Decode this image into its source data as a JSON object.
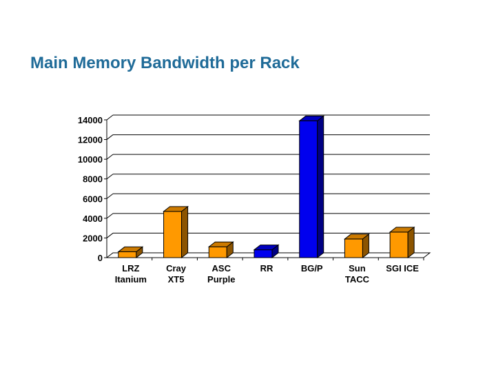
{
  "page": {
    "title": "Main Memory Bandwidth per Rack"
  },
  "chart_data": {
    "type": "bar",
    "title": "",
    "xlabel": "",
    "ylabel": "",
    "categories": [
      [
        "LRZ",
        "Itanium"
      ],
      [
        "Cray",
        "XT5"
      ],
      [
        "ASC",
        "Purple"
      ],
      [
        "RR"
      ],
      [
        "BG/P"
      ],
      [
        "Sun",
        "TACC"
      ],
      [
        "SGI ICE"
      ]
    ],
    "values": [
      600,
      4700,
      1100,
      800,
      13900,
      1900,
      2600
    ],
    "bar_colors": [
      "#ff9900",
      "#ff9900",
      "#ff9900",
      "#0000ee",
      "#0000ee",
      "#ff9900",
      "#ff9900"
    ],
    "ylim": [
      0,
      14000
    ],
    "yticks": [
      0,
      2000,
      4000,
      6000,
      8000,
      10000,
      12000,
      14000
    ],
    "grid": true,
    "legend": "none"
  }
}
